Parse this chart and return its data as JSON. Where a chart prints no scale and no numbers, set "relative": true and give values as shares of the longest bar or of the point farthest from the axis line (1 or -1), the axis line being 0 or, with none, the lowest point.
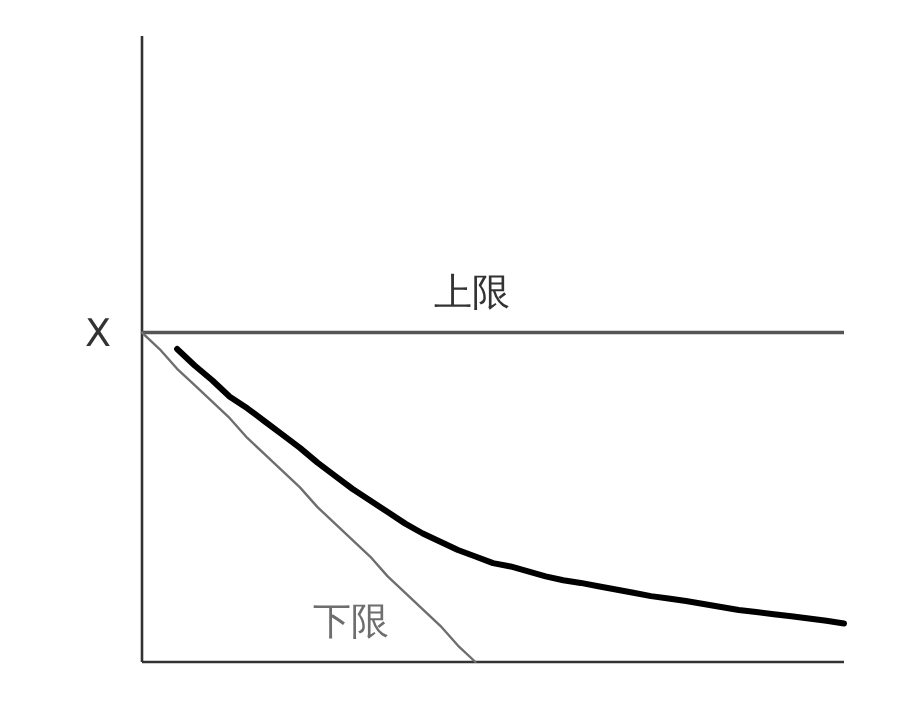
{
  "chart_data": {
    "type": "line",
    "relative": true,
    "marker": "none",
    "line_style": "solid",
    "legend": false,
    "grid": false,
    "categories": [
      null,
      null,
      null,
      null,
      null,
      null,
      null,
      null,
      null,
      null,
      null,
      null,
      null,
      null,
      null,
      null,
      null,
      null,
      null,
      null,
      null,
      null,
      null,
      null,
      null,
      null,
      null,
      null,
      null,
      null,
      null,
      null,
      null,
      null,
      null,
      null,
      null,
      null,
      null,
      null,
      null
    ],
    "series": [
      {
        "name": "下限",
        "color": "#6e6e6e",
        "values": [
          1,
          0.95,
          0.89,
          0.84,
          0.79,
          0.74,
          0.68,
          0.63,
          0.58,
          0.53,
          0.47,
          0.42,
          0.37,
          0.32,
          0.26,
          0.21,
          0.16,
          0.11,
          0.05,
          0,
          null,
          null,
          null,
          null,
          null,
          null,
          null,
          null,
          null,
          null,
          null,
          null,
          null,
          null,
          null,
          null,
          null,
          null,
          null,
          null,
          null
        ]
      },
      {
        "color": "#000000",
        "values": [
          null,
          null,
          0.95,
          0.9,
          0.855,
          0.805,
          0.77,
          0.73,
          0.69,
          0.65,
          0.605,
          0.565,
          0.525,
          0.49,
          0.455,
          0.42,
          0.39,
          0.365,
          0.34,
          0.32,
          0.3,
          0.29,
          0.275,
          0.26,
          0.248,
          0.24,
          0.23,
          0.22,
          0.21,
          0.2,
          0.193,
          0.185,
          0.176,
          0.167,
          0.158,
          0.152,
          0.145,
          0.139,
          0.132,
          0.125,
          0.117
        ]
      }
    ],
    "ref_lines": [
      {
        "axis": "y",
        "value": 1,
        "label": "上限",
        "color": "#555555"
      }
    ],
    "annotations": [
      "X"
    ]
  }
}
